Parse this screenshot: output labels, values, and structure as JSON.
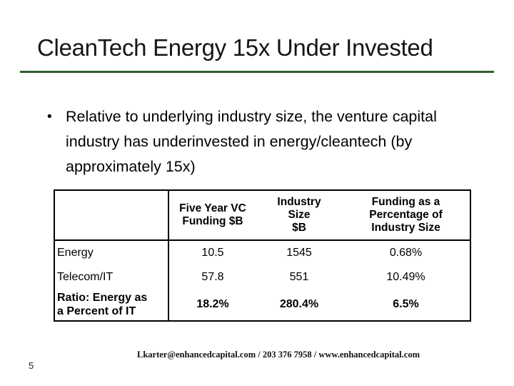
{
  "slide": {
    "title": "CleanTech Energy 15x Under Invested",
    "page_number": "5"
  },
  "bullet": {
    "marker": "•",
    "text": "Relative to underlying industry size, the venture capital industry has underinvested in energy/cleantech (by approximately 15x)"
  },
  "table": {
    "headers": [
      [
        ""
      ],
      [
        "Five Year VC",
        "Funding $B"
      ],
      [
        "Industry",
        "Size",
        "$B"
      ],
      [
        "Funding as a",
        "Percentage of",
        "Industry Size"
      ]
    ],
    "rows": [
      {
        "label_lines": [
          "Energy"
        ],
        "values": [
          "10.5",
          "1545",
          "0.68%"
        ]
      },
      {
        "label_lines": [
          "Telecom/IT"
        ],
        "values": [
          "57.8",
          "551",
          "10.49%"
        ]
      },
      {
        "label_lines": [
          "Ratio: Energy as",
          "a Percent of IT"
        ],
        "values": [
          "18.2%",
          "280.4%",
          "6.5%"
        ]
      }
    ]
  },
  "footer": {
    "contact": "Lkarter@enhancedcapital.com  /  203 376 7958  /  www.enhancedcapital.com"
  },
  "colors": {
    "accent_green": "#2d5f2b",
    "text_black": "#111111"
  }
}
